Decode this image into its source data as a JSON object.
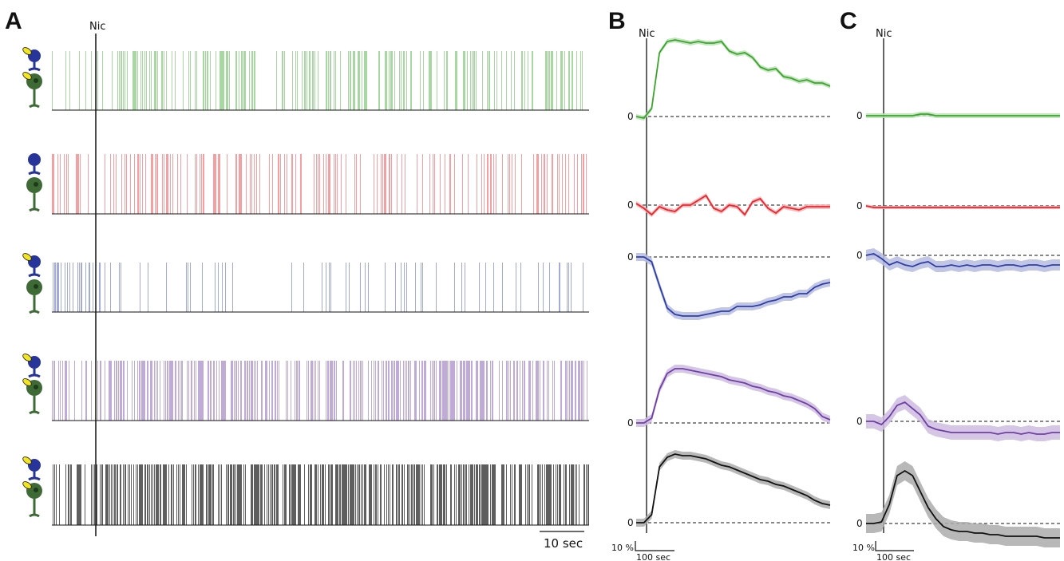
{
  "figure": {
    "panel_a": "A",
    "panel_b": "B",
    "panel_c": "C",
    "nic_label": "Nic",
    "zero_label": "0",
    "scale_a_time": "10 sec",
    "scale_bc_amp": "10 %",
    "scale_bc_time": "100 sec"
  },
  "colors": {
    "green": "#3aa52b",
    "red": "#e8272d",
    "blue": "#2f3fa6",
    "purple": "#6f3fa3",
    "black": "#111111",
    "cell_blue": "#27349a",
    "cell_green": "#3e6b35",
    "cell_yellow": "#f2e51e"
  },
  "chart_data": [
    {
      "panel": "A",
      "type": "raster",
      "stimulus": "Nic",
      "series": [
        {
          "color": "green",
          "spike_density": 0.55,
          "pre_density": 0.28,
          "cells": [
            "blue-yellow",
            "green-yellow"
          ]
        },
        {
          "color": "red",
          "spike_density": 0.42,
          "pre_density": 0.38,
          "cells": [
            "blue",
            "green"
          ]
        },
        {
          "color": "blue",
          "spike_density": 0.18,
          "pre_density": 0.65,
          "cells": [
            "blue-yellow",
            "green"
          ]
        },
        {
          "color": "purple",
          "spike_density": 0.85,
          "pre_density": 0.35,
          "cells": [
            "blue-yellow",
            "green-yellow"
          ]
        },
        {
          "color": "black",
          "spike_density": 0.95,
          "pre_density": 0.6,
          "cells": [
            "blue-yellow",
            "green-yellow"
          ]
        }
      ]
    },
    {
      "panel": "B",
      "type": "line",
      "stimulus": "Nic",
      "x_unit": "sec",
      "series": [
        {
          "color": "green",
          "values": [
            0,
            -1,
            5,
            40,
            47,
            48,
            47,
            46,
            47,
            46,
            46,
            47,
            41,
            39,
            40,
            37,
            31,
            29,
            30,
            25,
            24,
            22,
            23,
            21,
            21,
            19
          ],
          "band": 1.5
        },
        {
          "color": "red",
          "values": [
            1,
            -2,
            -6,
            -1,
            -3,
            -4,
            0,
            0,
            3,
            6,
            -2,
            -4,
            0,
            -1,
            -6,
            2,
            4,
            -2,
            -5,
            -1,
            -2,
            -3,
            -1,
            -1,
            -1,
            -1
          ],
          "band": 1.5
        },
        {
          "color": "blue",
          "values": [
            0,
            0,
            -3,
            -18,
            -32,
            -36,
            -37,
            -37,
            -37,
            -36,
            -35,
            -34,
            -34,
            -31,
            -31,
            -31,
            -30,
            -28,
            -27,
            -25,
            -25,
            -23,
            -23,
            -19,
            -17,
            -16
          ],
          "band": 2.5
        },
        {
          "color": "purple",
          "values": [
            0,
            0,
            3,
            21,
            31,
            34,
            34,
            33,
            32,
            31,
            30,
            29,
            27,
            26,
            25,
            23,
            22,
            20,
            19,
            17,
            16,
            14,
            12,
            9,
            4,
            2
          ],
          "band": 2.5
        },
        {
          "color": "black",
          "values": [
            0,
            0,
            5,
            35,
            41,
            43,
            42,
            42,
            41,
            40,
            38,
            36,
            35,
            33,
            31,
            29,
            27,
            26,
            24,
            23,
            21,
            19,
            17,
            14,
            12,
            11
          ],
          "band": 2.5
        }
      ]
    },
    {
      "panel": "C",
      "type": "line",
      "stimulus": "Nic",
      "x_unit": "sec",
      "series": [
        {
          "color": "green",
          "values": [
            0,
            0,
            0,
            0,
            0,
            0,
            0,
            1,
            1,
            0,
            0,
            0,
            0,
            0,
            0,
            0,
            0,
            0,
            0,
            0,
            0,
            0,
            0,
            0,
            0,
            0
          ],
          "band": 1.5
        },
        {
          "color": "red",
          "values": [
            0,
            -1,
            -1,
            -1,
            -1,
            -1,
            -1,
            -1,
            -1,
            -1,
            -1,
            -1,
            -1,
            -1,
            -1,
            -1,
            -1,
            -1,
            -1,
            -1,
            -1,
            -1,
            -1,
            -1,
            -1,
            -1
          ],
          "band": 1.0
        },
        {
          "color": "blue",
          "values": [
            0,
            1,
            -2,
            -6,
            -4,
            -6,
            -7,
            -5,
            -4,
            -7,
            -7,
            -6,
            -7,
            -6,
            -7,
            -6,
            -6,
            -7,
            -6,
            -6,
            -7,
            -6,
            -6,
            -7,
            -6,
            -6
          ],
          "band": 3.5
        },
        {
          "color": "purple",
          "values": [
            0,
            0,
            -2,
            3,
            10,
            12,
            8,
            4,
            -3,
            -5,
            -6,
            -7,
            -7,
            -7,
            -7,
            -7,
            -7,
            -8,
            -7,
            -7,
            -8,
            -7,
            -8,
            -8,
            -7,
            -7
          ],
          "band": 4.5
        },
        {
          "color": "black",
          "values": [
            0,
            0,
            1,
            12,
            30,
            33,
            30,
            20,
            10,
            3,
            -2,
            -4,
            -5,
            -5,
            -6,
            -6,
            -7,
            -7,
            -8,
            -8,
            -8,
            -8,
            -8,
            -9,
            -9,
            -9
          ],
          "band": 6.0
        }
      ]
    }
  ]
}
